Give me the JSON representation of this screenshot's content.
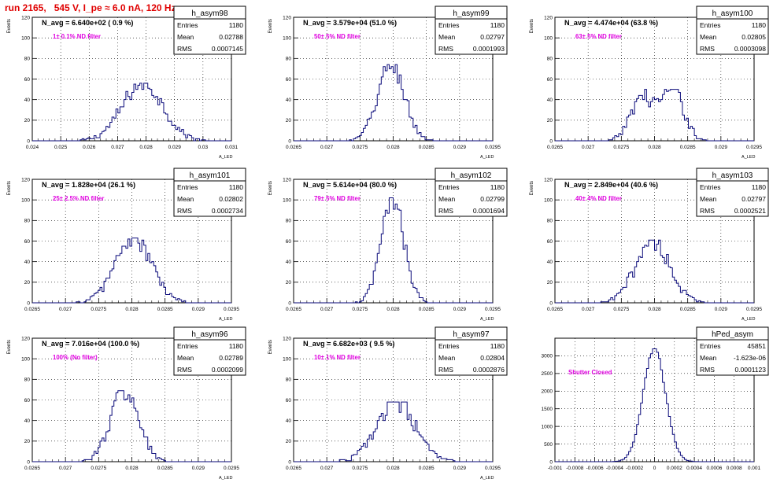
{
  "header": {
    "run_title": "run 2165,   545 V, I_pe ≈ 6.0 nA, 120 Hz"
  },
  "colors": {
    "histogram": "#0a0a7a",
    "filter_label": "#e000e0",
    "title": "#e00000",
    "grid": "#000000"
  },
  "chart_data": [
    {
      "type": "bar",
      "name": "h_asym98",
      "navg_label": "N_avg = 6.640e+02 ( 0.9 %)",
      "filter_label": "1± 0.1% ND filter",
      "ylabel": "Events",
      "xlabel": "A_LED",
      "stats": {
        "entries_label": "Entries",
        "entries": "1180",
        "mean_label": "Mean",
        "mean": "0.02788",
        "rms_label": "RMS",
        "rms": "0.0007145"
      },
      "xlim": [
        0.024,
        0.031
      ],
      "ylim": [
        0,
        120
      ],
      "xticks": [
        "0.024",
        "0.025",
        "0.026",
        "0.027",
        "0.028",
        "0.029",
        "0.03",
        "0.031"
      ],
      "yticks": [
        "0",
        "20",
        "40",
        "60",
        "80",
        "100",
        "120"
      ],
      "mean_value": 0.02788,
      "sigma": 0.0007145,
      "entries_value": 1180,
      "peak": 56,
      "bins": 100
    },
    {
      "type": "bar",
      "name": "h_asym99",
      "navg_label": "N_avg = 3.579e+04 (51.0 %)",
      "filter_label": "50± 5% ND filter",
      "ylabel": "Events",
      "xlabel": "A_LED",
      "stats": {
        "entries_label": "Entries",
        "entries": "1180",
        "mean_label": "Mean",
        "mean": "0.02797",
        "rms_label": "RMS",
        "rms": "0.0001993"
      },
      "xlim": [
        0.0265,
        0.0295
      ],
      "ylim": [
        0,
        120
      ],
      "xticks": [
        "0.0265",
        "0.027",
        "0.0275",
        "0.028",
        "0.0285",
        "0.029",
        "0.0295"
      ],
      "yticks": [
        "0",
        "20",
        "40",
        "60",
        "80",
        "100",
        "120"
      ],
      "mean_value": 0.02797,
      "sigma": 0.0001993,
      "entries_value": 1180,
      "peak": 74,
      "bins": 100
    },
    {
      "type": "bar",
      "name": "h_asym100",
      "navg_label": "N_avg = 4.474e+04 (63.8 %)",
      "filter_label": "63± 5% ND filter",
      "ylabel": "Events",
      "xlabel": "A_LED",
      "stats": {
        "entries_label": "Entries",
        "entries": "1180",
        "mean_label": "Mean",
        "mean": "0.02805",
        "rms_label": "RMS",
        "rms": "0.0003098"
      },
      "xlim": [
        0.0265,
        0.0295
      ],
      "ylim": [
        0,
        120
      ],
      "xticks": [
        "0.0265",
        "0.027",
        "0.0275",
        "0.028",
        "0.0285",
        "0.029",
        "0.0295"
      ],
      "yticks": [
        "0",
        "20",
        "40",
        "60",
        "80",
        "100",
        "120"
      ],
      "mean_value": 0.02805,
      "sigma": 0.0003098,
      "entries_value": 1180,
      "peak": 50,
      "bins": 100,
      "bimodal": true
    },
    {
      "type": "bar",
      "name": "h_asym101",
      "navg_label": "N_avg = 1.828e+04 (26.1 %)",
      "filter_label": "25± 2.5% ND filter",
      "ylabel": "Events",
      "xlabel": "A_LED",
      "stats": {
        "entries_label": "Entries",
        "entries": "1180",
        "mean_label": "Mean",
        "mean": "0.02802",
        "rms_label": "RMS",
        "rms": "0.0002734"
      },
      "xlim": [
        0.0265,
        0.0295
      ],
      "ylim": [
        0,
        120
      ],
      "xticks": [
        "0.0265",
        "0.027",
        "0.0275",
        "0.028",
        "0.0285",
        "0.029",
        "0.0295"
      ],
      "yticks": [
        "0",
        "20",
        "40",
        "60",
        "80",
        "100",
        "120"
      ],
      "mean_value": 0.02802,
      "sigma": 0.0002734,
      "entries_value": 1180,
      "peak": 63,
      "bins": 100
    },
    {
      "type": "bar",
      "name": "h_asym102",
      "navg_label": "N_avg = 5.614e+04 (80.0 %)",
      "filter_label": "79± 5% ND filter",
      "ylabel": "Events",
      "xlabel": "A_LED",
      "stats": {
        "entries_label": "Entries",
        "entries": "1180",
        "mean_label": "Mean",
        "mean": "0.02799",
        "rms_label": "RMS",
        "rms": "0.0001694"
      },
      "xlim": [
        0.0265,
        0.0295
      ],
      "ylim": [
        0,
        120
      ],
      "xticks": [
        "0.0265",
        "0.027",
        "0.0275",
        "0.028",
        "0.0285",
        "0.029",
        "0.0295"
      ],
      "yticks": [
        "0",
        "20",
        "40",
        "60",
        "80",
        "100",
        "120"
      ],
      "mean_value": 0.02799,
      "sigma": 0.0001694,
      "entries_value": 1180,
      "peak": 102,
      "bins": 100
    },
    {
      "type": "bar",
      "name": "h_asym103",
      "navg_label": "N_avg = 2.849e+04 (40.6 %)",
      "filter_label": "40± 4% ND filter",
      "ylabel": "Events",
      "xlabel": "A_LED",
      "stats": {
        "entries_label": "Entries",
        "entries": "1180",
        "mean_label": "Mean",
        "mean": "0.02797",
        "rms_label": "RMS",
        "rms": "0.0002521"
      },
      "xlim": [
        0.0265,
        0.0295
      ],
      "ylim": [
        0,
        120
      ],
      "xticks": [
        "0.0265",
        "0.027",
        "0.0275",
        "0.028",
        "0.0285",
        "0.029",
        "0.0295"
      ],
      "yticks": [
        "0",
        "20",
        "40",
        "60",
        "80",
        "100",
        "120"
      ],
      "mean_value": 0.02797,
      "sigma": 0.0002521,
      "entries_value": 1180,
      "peak": 61,
      "bins": 100
    },
    {
      "type": "bar",
      "name": "h_asym96",
      "navg_label": "N_avg = 7.016e+04 (100.0 %)",
      "filter_label": "100% (No filter)",
      "ylabel": "Events",
      "xlabel": "A_LED",
      "stats": {
        "entries_label": "Entries",
        "entries": "1180",
        "mean_label": "Mean",
        "mean": "0.02789",
        "rms_label": "RMS",
        "rms": "0.0002099"
      },
      "xlim": [
        0.0265,
        0.0295
      ],
      "ylim": [
        0,
        120
      ],
      "xticks": [
        "0.0265",
        "0.027",
        "0.0275",
        "0.028",
        "0.0285",
        "0.029",
        "0.0295"
      ],
      "yticks": [
        "0",
        "20",
        "40",
        "60",
        "80",
        "100",
        "120"
      ],
      "mean_value": 0.02789,
      "sigma": 0.0002099,
      "entries_value": 1180,
      "peak": 69,
      "bins": 100
    },
    {
      "type": "bar",
      "name": "h_asym97",
      "navg_label": "N_avg = 6.682e+03 ( 9.5 %)",
      "filter_label": "10± 1% ND filter",
      "ylabel": "Events",
      "xlabel": "A_LED",
      "stats": {
        "entries_label": "Entries",
        "entries": "1180",
        "mean_label": "Mean",
        "mean": "0.02804",
        "rms_label": "RMS",
        "rms": "0.0002876"
      },
      "xlim": [
        0.0265,
        0.0295
      ],
      "ylim": [
        0,
        120
      ],
      "xticks": [
        "0.0265",
        "0.027",
        "0.0275",
        "0.028",
        "0.0285",
        "0.029",
        "0.0295"
      ],
      "yticks": [
        "0",
        "20",
        "40",
        "60",
        "80",
        "100",
        "120"
      ],
      "mean_value": 0.02804,
      "sigma": 0.0002876,
      "entries_value": 1180,
      "peak": 58,
      "bins": 100
    },
    {
      "type": "bar",
      "name": "hPed_asym",
      "navg_label": "",
      "filter_label": "Shutter Closed",
      "ylabel": "",
      "xlabel": "",
      "stats": {
        "entries_label": "Entries",
        "entries": "45851",
        "mean_label": "Mean",
        "mean": "-1.623e-06",
        "rms_label": "RMS",
        "rms": "0.0001123"
      },
      "xlim": [
        -0.001,
        0.001
      ],
      "ylim": [
        0,
        3500
      ],
      "xticks": [
        "-0.001",
        "-0.0008",
        "-0.0006",
        "-0.0004",
        "-0.0002",
        "0",
        "0.0002",
        "0.0004",
        "0.0006",
        "0.0008",
        "0.001"
      ],
      "yticks": [
        "0",
        "500",
        "1000",
        "1500",
        "2000",
        "2500",
        "3000"
      ],
      "mean_value": -1.623e-06,
      "sigma": 0.0001123,
      "entries_value": 45851,
      "peak": 3200,
      "bins": 100
    }
  ]
}
